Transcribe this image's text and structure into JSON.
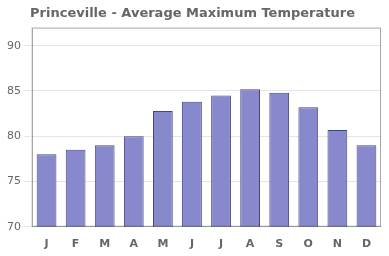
{
  "chart_data": {
    "type": "bar",
    "title": "Princeville - Average Maximum Temperature",
    "categories": [
      "J",
      "F",
      "M",
      "A",
      "M",
      "J",
      "J",
      "A",
      "S",
      "O",
      "N",
      "D"
    ],
    "values": [
      78,
      78.5,
      79,
      80,
      82.8,
      83.8,
      84.5,
      85.2,
      84.8,
      83.2,
      80.7,
      79
    ],
    "color": "#8888cc",
    "ylim": [
      70,
      92
    ],
    "yticks": [
      70,
      75,
      80,
      85,
      90
    ],
    "grid": true
  }
}
